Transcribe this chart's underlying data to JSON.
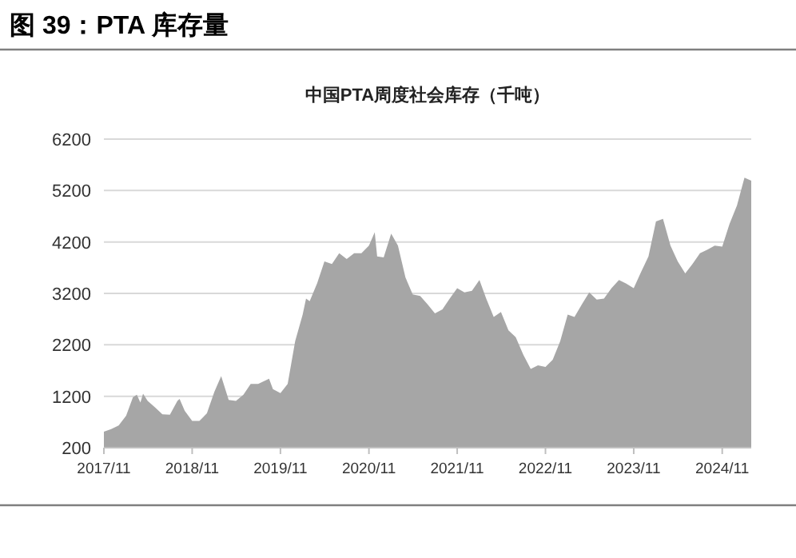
{
  "chart_data": {
    "type": "area",
    "title": "图 39：PTA 库存量",
    "subtitle": "中国PTA周度社会库存（千吨）",
    "x": [
      "2017-11",
      "2017-12",
      "2018-01",
      "2018-02",
      "2018-03",
      "2018-03-17",
      "2018-04",
      "2018-04-12",
      "2018-05",
      "2018-06",
      "2018-07",
      "2018-08",
      "2018-09",
      "2018-09-10",
      "2018-10",
      "2018-11",
      "2018-12",
      "2019-01",
      "2019-02",
      "2019-03",
      "2019-04",
      "2019-05",
      "2019-06",
      "2019-07",
      "2019-08",
      "2019-09-15",
      "2019-10",
      "2019-11",
      "2019-12",
      "2020-01",
      "2020-02",
      "2020-02-15",
      "2020-03",
      "2020-04",
      "2020-05",
      "2020-06",
      "2020-07",
      "2020-08",
      "2020-09",
      "2020-10",
      "2020-11",
      "2020-11-25",
      "2020-12-05",
      "2021-01",
      "2021-02",
      "2021-03",
      "2021-04",
      "2021-05",
      "2021-06",
      "2021-07",
      "2021-08",
      "2021-09",
      "2021-10",
      "2021-11",
      "2021-12",
      "2022-01",
      "2022-02",
      "2022-03",
      "2022-04",
      "2022-05",
      "2022-06",
      "2022-07",
      "2022-08",
      "2022-09",
      "2022-10",
      "2022-11",
      "2022-12",
      "2023-01",
      "2023-02",
      "2023-03",
      "2023-04",
      "2023-05",
      "2023-06",
      "2023-07",
      "2023-08",
      "2023-09",
      "2023-10",
      "2023-11",
      "2023-12",
      "2024-01",
      "2024-02",
      "2024-03",
      "2024-04",
      "2024-05",
      "2024-06",
      "2024-07",
      "2024-08",
      "2024-09",
      "2024-10",
      "2024-11",
      "2024-12",
      "2025-01",
      "2025-02",
      "2025-03"
    ],
    "series": [
      {
        "color": "#a6a6a6",
        "values": [
          510,
          560,
          630,
          820,
          1180,
          1230,
          1080,
          1250,
          1110,
          980,
          850,
          840,
          1110,
          1150,
          920,
          720,
          720,
          870,
          1290,
          1590,
          1130,
          1110,
          1230,
          1440,
          1440,
          1540,
          1340,
          1260,
          1440,
          2270,
          2790,
          3100,
          3050,
          3400,
          3820,
          3770,
          3980,
          3870,
          3980,
          3980,
          4130,
          4390,
          3920,
          3900,
          4360,
          4130,
          3510,
          3180,
          3150,
          2990,
          2810,
          2890,
          3100,
          3300,
          3220,
          3250,
          3460,
          3100,
          2740,
          2840,
          2480,
          2350,
          2010,
          1730,
          1800,
          1770,
          1910,
          2270,
          2790,
          2740,
          2990,
          3220,
          3080,
          3100,
          3300,
          3460,
          3390,
          3300,
          3610,
          3920,
          4600,
          4650,
          4130,
          3820,
          3590,
          3770,
          3980,
          4050,
          4130,
          4110,
          4550,
          4910,
          5450,
          5390
        ]
      }
    ],
    "xlim": [
      "2017-11",
      "2025-03"
    ],
    "xticks": [
      {
        "value": "2017-11",
        "label": "2017/11"
      },
      {
        "value": "2018-11",
        "label": "2018/11"
      },
      {
        "value": "2019-11",
        "label": "2019/11"
      },
      {
        "value": "2020-11",
        "label": "2020/11"
      },
      {
        "value": "2021-11",
        "label": "2021/11"
      },
      {
        "value": "2022-11",
        "label": "2022/11"
      },
      {
        "value": "2023-11",
        "label": "2023/11"
      },
      {
        "value": "2024-11",
        "label": "2024/11"
      }
    ],
    "ylim": [
      200,
      6200
    ],
    "yticks": [
      200,
      1200,
      2200,
      3200,
      4200,
      5200,
      6200
    ],
    "grid": "y"
  }
}
